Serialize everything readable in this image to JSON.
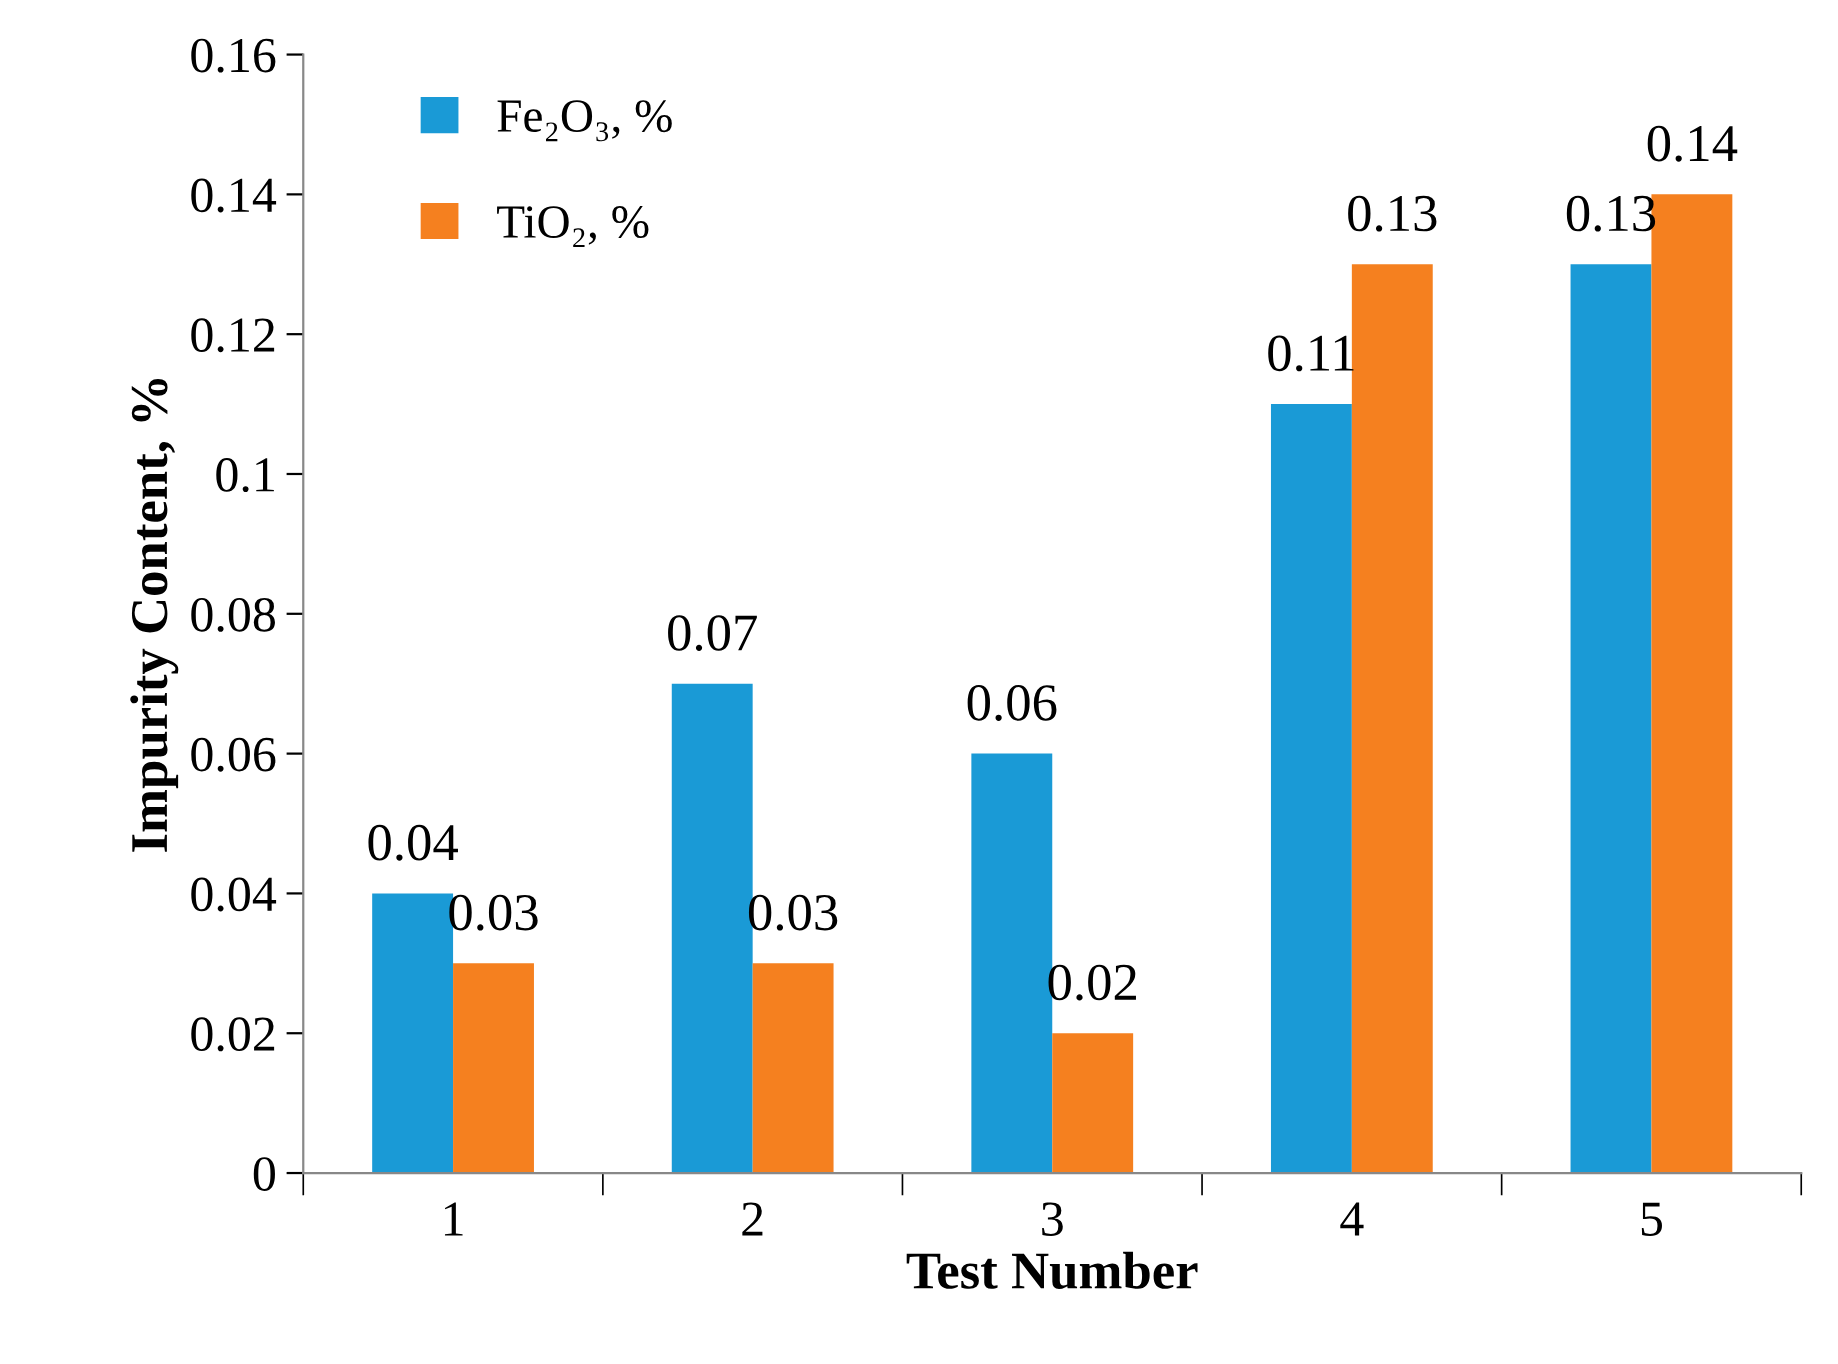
{
  "chart_data": {
    "type": "bar",
    "xlabel": "Test Number",
    "ylabel": "Impurity Content, %",
    "categories": [
      "1",
      "2",
      "3",
      "4",
      "5"
    ],
    "series": [
      {
        "name": "Fe₂O₃, %",
        "color": "#1a9ad6",
        "values": [
          0.04,
          0.07,
          0.06,
          0.11,
          0.13
        ]
      },
      {
        "name": "TiO₂, %",
        "color": "#f5801f",
        "values": [
          0.03,
          0.03,
          0.02,
          0.13,
          0.14
        ]
      }
    ],
    "ylim": [
      0,
      0.16
    ],
    "yticks": [
      0,
      0.02,
      0.04,
      0.06,
      0.08,
      0.1,
      0.12,
      0.14,
      0.16
    ],
    "grid": false,
    "legend": "top left",
    "data_labels": true
  }
}
